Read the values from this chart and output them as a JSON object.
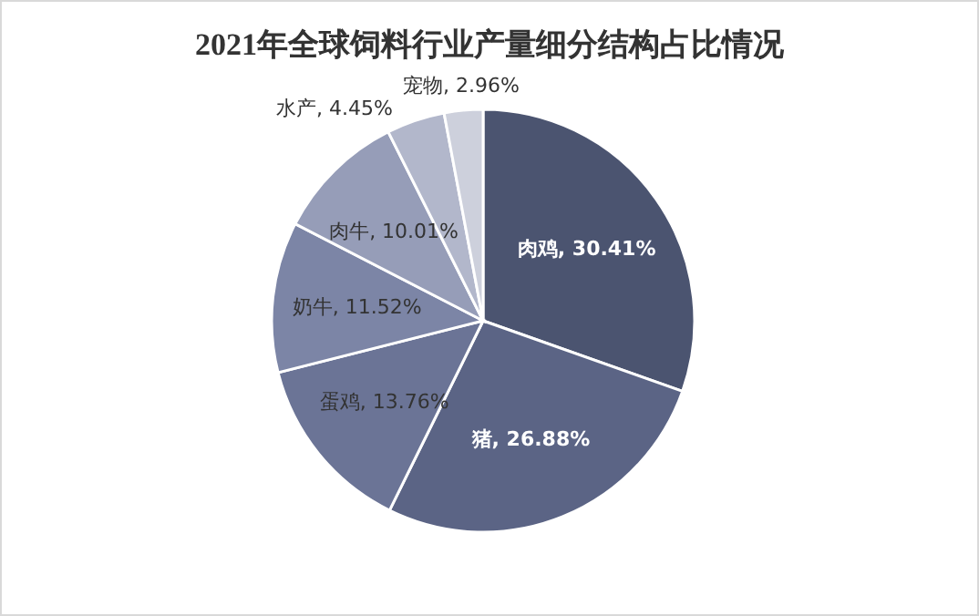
{
  "chart_data": {
    "type": "pie",
    "title": "2021年全球饲料行业产量细分结构占比情况",
    "categories": [
      "肉鸡",
      "猪",
      "蛋鸡",
      "奶牛",
      "肉牛",
      "水产",
      "宠物"
    ],
    "values": [
      30.41,
      26.88,
      13.76,
      11.52,
      10.01,
      4.45,
      2.96
    ],
    "value_labels": [
      "30.41%",
      "26.88%",
      "13.76%",
      "11.52%",
      "10.01%",
      "4.45%",
      "2.96%"
    ],
    "colors": [
      "#4b5470",
      "#5b6485",
      "#6b7496",
      "#7c85a6",
      "#969db8",
      "#b2b7cb",
      "#cdd0dc"
    ]
  }
}
